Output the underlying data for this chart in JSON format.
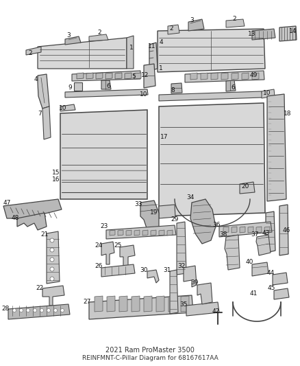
{
  "title": "2021 Ram ProMaster 3500",
  "subtitle": "REINFMNT-C-Pillar",
  "part_number": "68167617AA",
  "bg_color": "#ffffff",
  "line_color": "#444444",
  "label_color": "#111111",
  "font_size": 6.5,
  "fig_w": 4.38,
  "fig_h": 5.33,
  "dpi": 100
}
